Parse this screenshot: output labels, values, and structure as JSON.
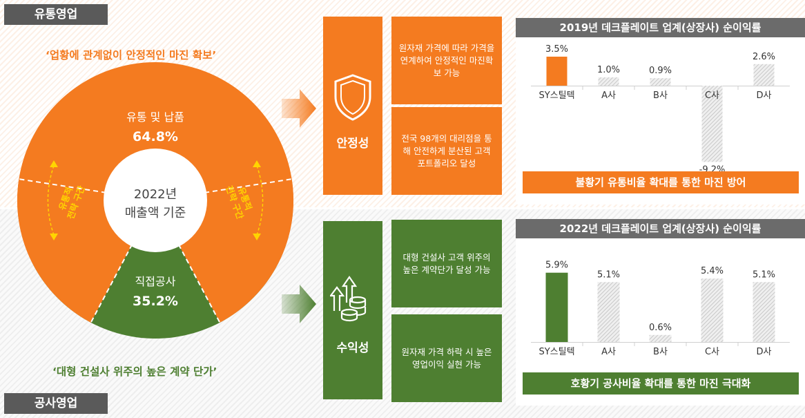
{
  "sections": {
    "distribution": {
      "tag": "유통영업",
      "quote": "‘업황에 관계없이 안정적인 마진 확보’"
    },
    "construction": {
      "tag": "공사영업",
      "quote": "‘대형 건설사 위주의 높은 계약 단가’"
    }
  },
  "donut": {
    "center_line1": "2022년",
    "center_line2": "매출액 기준",
    "segments": [
      {
        "label": "유통 및 납품",
        "value": 64.8,
        "value_text": "64.8%",
        "color": "#f47b20"
      },
      {
        "label": "직접공사",
        "value": 35.2,
        "value_text": "35.2%",
        "color": "#4e7f31"
      }
    ],
    "strategy_label_lines": [
      "유통적",
      "전략 구간"
    ]
  },
  "stability": {
    "label": "안정성",
    "icon": "shield-icon",
    "items": [
      {
        "text": "원자재 가격에 따라 가격을 연계하여 안정적인 마진확보 가능"
      },
      {
        "text": "전국 98개의 대리점을 통해 안전하게 분산된 고객 포트폴리오 달성"
      }
    ]
  },
  "profitability": {
    "label": "수익성",
    "icon": "coins-growth-icon",
    "items": [
      {
        "text": "대형 건설사 고객 위주의 높은 계약단가 달성 가능"
      },
      {
        "text": "원자재 가격 하락 시 높은 영업이익 실현 가능"
      }
    ]
  },
  "colors": {
    "orange": "#f47b20",
    "green": "#4e7f31",
    "gray_bar": "#d9d9d9",
    "header": "#6b6b6b"
  },
  "chart_data": [
    {
      "type": "bar",
      "title": "2019년 데크플레이트 업계(상장사) 순이익률",
      "categories": [
        "SY스틸텍",
        "A사",
        "B사",
        "C사",
        "D사"
      ],
      "values": [
        3.5,
        1.0,
        0.9,
        -9.2,
        2.6
      ],
      "value_labels": [
        "3.5%",
        "1.0%",
        "0.9%",
        "-9.2%",
        "2.6%"
      ],
      "highlight_index": 0,
      "highlight_color": "#f47b20",
      "footer": "불황기 유통비율 확대를 통한 마진 방어",
      "footer_color": "#f47b20"
    },
    {
      "type": "bar",
      "title": "2022년 데크플레이트 업계(상장사) 순이익률",
      "categories": [
        "SY스틸텍",
        "A사",
        "B사",
        "C사",
        "D사"
      ],
      "values": [
        5.9,
        5.1,
        0.6,
        5.4,
        5.1
      ],
      "value_labels": [
        "5.9%",
        "5.1%",
        "0.6%",
        "5.4%",
        "5.1%"
      ],
      "highlight_index": 0,
      "highlight_color": "#4e7f31",
      "footer": "호황기 공사비율 확대를 통한 마진 극대화",
      "footer_color": "#4e7f31"
    }
  ]
}
